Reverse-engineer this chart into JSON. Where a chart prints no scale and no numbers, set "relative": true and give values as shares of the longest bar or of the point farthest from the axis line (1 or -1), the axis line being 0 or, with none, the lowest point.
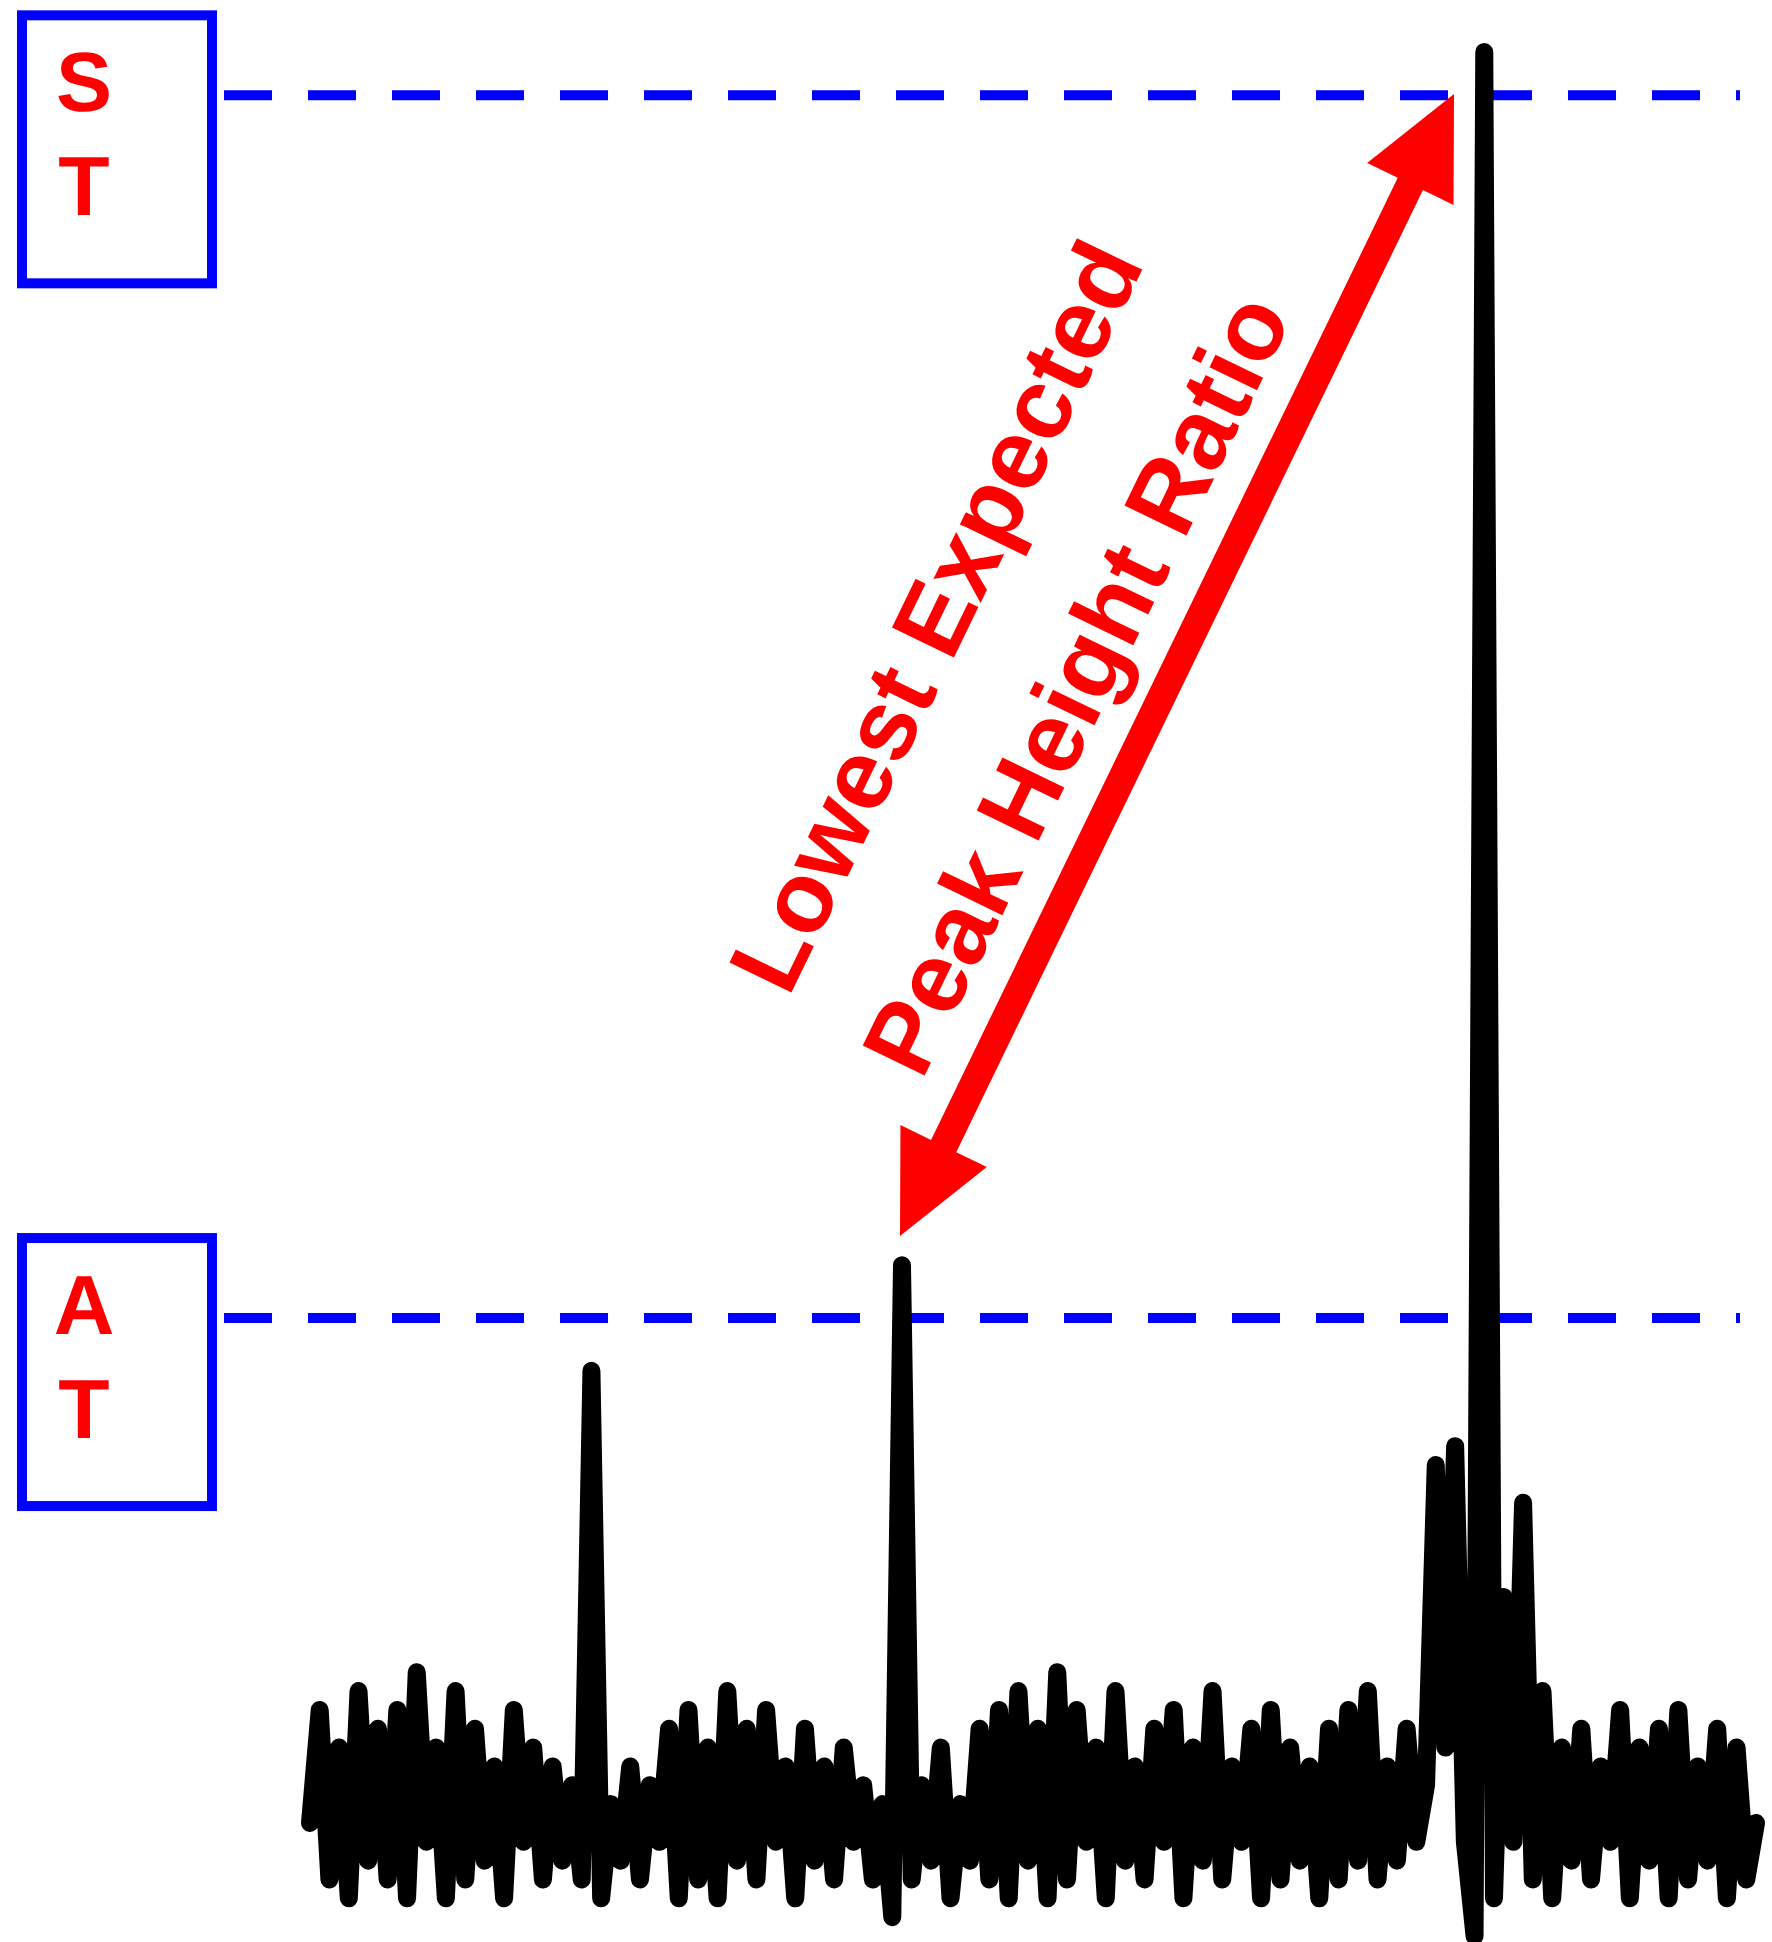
{
  "chart_data": {
    "type": "line",
    "relative": true,
    "marker": "none",
    "line_style": "solid",
    "categories": [
      null,
      null,
      null,
      null,
      null,
      null,
      null,
      null,
      null,
      null,
      null,
      null,
      null,
      null,
      null,
      null,
      null,
      null,
      null,
      null,
      null,
      null,
      null,
      null,
      null,
      null,
      null,
      null,
      null,
      null,
      null,
      null,
      null,
      null,
      null,
      null,
      null,
      null,
      null,
      null,
      null,
      null,
      null,
      null,
      null,
      null,
      null,
      null,
      null,
      null,
      null,
      null,
      null,
      null,
      null,
      null,
      null,
      null,
      null,
      null,
      null,
      null,
      null,
      null,
      null,
      null,
      null,
      null,
      null,
      null,
      null,
      null,
      null,
      null,
      null,
      null,
      null,
      null,
      null,
      null,
      null,
      null,
      null,
      null,
      null,
      null,
      null,
      null,
      null,
      null,
      null,
      null,
      null,
      null,
      null,
      null,
      null,
      null,
      null,
      null,
      null,
      null,
      null,
      null,
      null,
      null,
      null,
      null,
      null,
      null,
      null,
      null,
      null,
      null,
      null,
      null,
      null,
      null,
      null,
      null,
      null,
      null,
      null,
      null,
      null,
      null,
      null,
      null,
      null,
      null,
      null,
      null,
      null,
      null,
      null,
      null,
      null,
      null,
      null,
      null,
      null,
      null,
      null,
      null,
      null,
      null,
      null,
      null,
      null,
      null
    ],
    "series": [
      {
        "color": "#000000",
        "values": [
          0.06,
          0.12,
          0.03,
          0.1,
          0.02,
          0.13,
          0.04,
          0.11,
          0.03,
          0.12,
          0.02,
          0.14,
          0.05,
          0.1,
          0.02,
          0.13,
          0.03,
          0.11,
          0.04,
          0.09,
          0.02,
          0.12,
          0.05,
          0.1,
          0.03,
          0.09,
          0.04,
          0.08,
          0.03,
          0.3,
          0.02,
          0.07,
          0.04,
          0.09,
          0.03,
          0.08,
          0.05,
          0.11,
          0.02,
          0.12,
          0.03,
          0.1,
          0.02,
          0.13,
          0.04,
          0.11,
          0.03,
          0.12,
          0.05,
          0.09,
          0.02,
          0.11,
          0.04,
          0.09,
          0.03,
          0.1,
          0.05,
          0.08,
          0.03,
          0.07,
          0.01,
          0.356,
          0.03,
          0.08,
          0.04,
          0.1,
          0.02,
          0.07,
          0.04,
          0.11,
          0.03,
          0.12,
          0.02,
          0.13,
          0.04,
          0.11,
          0.02,
          0.14,
          0.03,
          0.12,
          0.05,
          0.1,
          0.02,
          0.13,
          0.04,
          0.09,
          0.03,
          0.11,
          0.05,
          0.12,
          0.02,
          0.1,
          0.04,
          0.13,
          0.03,
          0.09,
          0.05,
          0.11,
          0.02,
          0.12,
          0.03,
          0.1,
          0.04,
          0.09,
          0.02,
          0.11,
          0.03,
          0.12,
          0.04,
          0.13,
          0.03,
          0.09,
          0.04,
          0.11,
          0.05,
          0.08,
          0.25,
          0.1,
          0.26,
          0.05,
          0.0,
          1.0,
          0.02,
          0.18,
          0.05,
          0.23,
          0.03,
          0.13,
          0.02,
          0.1,
          0.04,
          0.11,
          0.03,
          0.09,
          0.05,
          0.12,
          0.02,
          0.1,
          0.04,
          0.11,
          0.02,
          0.12,
          0.03,
          0.09,
          0.04,
          0.11,
          0.02,
          0.1,
          0.03,
          0.06
        ]
      }
    ],
    "ref_lines": [
      {
        "axis": "y",
        "value": 0.977,
        "label": "ST",
        "color": "#0000ff",
        "line_style": "dashed"
      },
      {
        "axis": "y",
        "value": 0.328,
        "label": "AT",
        "color": "#0000ff",
        "line_style": "dashed"
      }
    ],
    "annotations": [
      "Lowest Expected Peak Height Ratio"
    ]
  }
}
